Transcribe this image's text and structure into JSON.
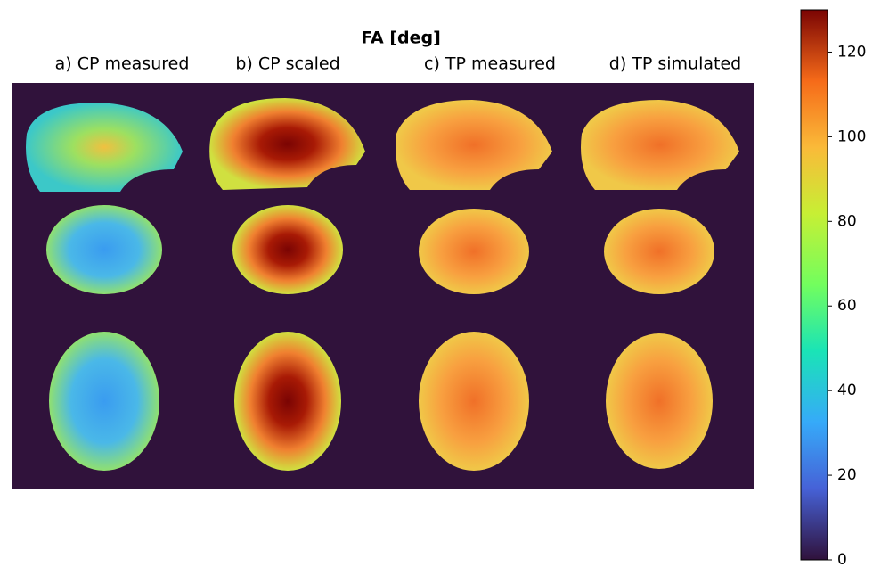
{
  "chart_data": {
    "type": "image",
    "title": "FA [deg]",
    "panels": [
      "a) CP measured",
      "b) CP scaled",
      "c) TP measured",
      "d) TP simulated"
    ],
    "colorbar": {
      "ylim": [
        0,
        130
      ],
      "yticks": [
        0,
        20,
        40,
        60,
        80,
        100,
        120
      ]
    }
  }
}
